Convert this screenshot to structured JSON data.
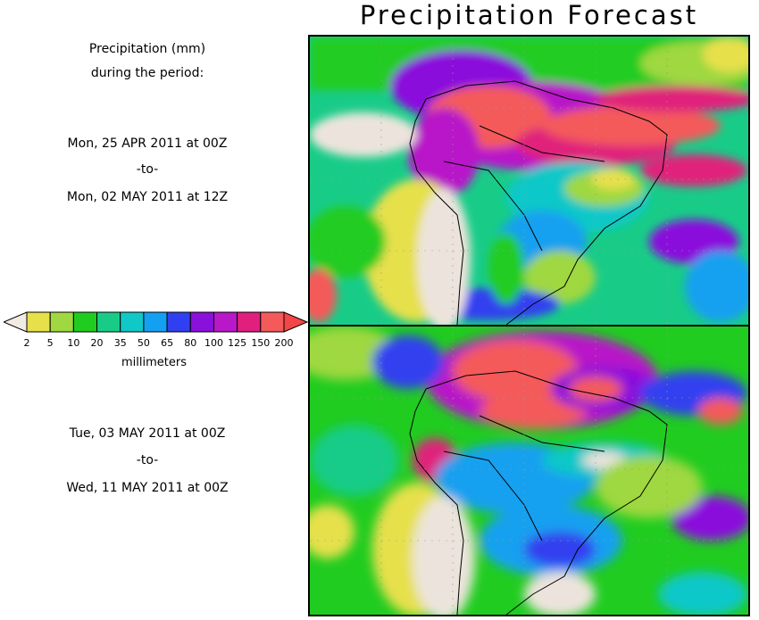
{
  "title": "Precipitation Forecast",
  "header": {
    "line1": "Precipitation (mm)",
    "line2": "during the period:"
  },
  "period1": {
    "start": "Mon, 25 APR 2011 at 00Z",
    "sep": "-to-",
    "end": "Mon, 02 MAY 2011 at 12Z"
  },
  "period2": {
    "start": "Tue, 03 MAY 2011 at 00Z",
    "sep": "-to-",
    "end": "Wed, 11 MAY 2011 at 00Z"
  },
  "legend": {
    "units": "millimeters",
    "ticks": [
      "2",
      "5",
      "10",
      "20",
      "35",
      "50",
      "65",
      "80",
      "100",
      "125",
      "150",
      "200"
    ],
    "colors": [
      "#e6e04b",
      "#9fd840",
      "#20cc20",
      "#18cc88",
      "#10c8c8",
      "#14a0f0",
      "#3040f0",
      "#8a10dc",
      "#b818c8",
      "#e0207c",
      "#f45a5a"
    ],
    "low_color": "#f0ece4",
    "high_color": "#f44646"
  },
  "colors": {
    "land_dry": "#ece4dc",
    "ocean": "#ffffff"
  }
}
